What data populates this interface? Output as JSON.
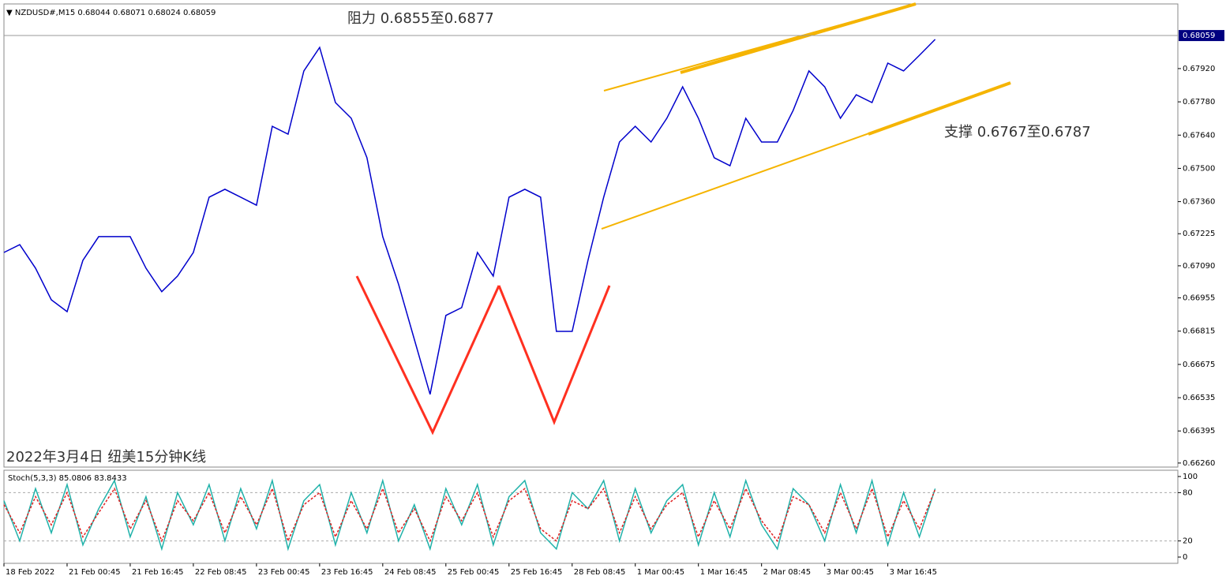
{
  "chart_data": [
    {
      "type": "line",
      "title": "NZDUSD#,M15",
      "ohlc": [
        0.68044,
        0.68071,
        0.68024,
        0.68059
      ],
      "color": "#0000cc",
      "last_price": 0.68059,
      "x": [
        0,
        16,
        32,
        48,
        64,
        80,
        96,
        112,
        128,
        144,
        160,
        176,
        192,
        208,
        224,
        240,
        256,
        272,
        288,
        304,
        320,
        336,
        352,
        368,
        384,
        400,
        416,
        432,
        448,
        464,
        480,
        496,
        512,
        528,
        544,
        560,
        576,
        592,
        608,
        624,
        640,
        656,
        672,
        688,
        704,
        720,
        736,
        752,
        768,
        784,
        800,
        816,
        832,
        848,
        864,
        880,
        896,
        912,
        928,
        944
      ],
      "values": [
        0.67146,
        0.67179,
        0.6708,
        0.66947,
        0.66897,
        0.67113,
        0.67213,
        0.67213,
        0.67213,
        0.6708,
        0.66981,
        0.67047,
        0.67146,
        0.67379,
        0.67412,
        0.67379,
        0.67345,
        0.67677,
        0.67644,
        0.6791,
        0.68009,
        0.67777,
        0.67711,
        0.67545,
        0.67213,
        0.67013,
        0.66781,
        0.66549,
        0.66881,
        0.66914,
        0.67146,
        0.67047,
        0.67379,
        0.67412,
        0.67379,
        0.66814,
        0.66814,
        0.67113,
        0.67379,
        0.67611,
        0.67677,
        0.67611,
        0.67711,
        0.67843,
        0.67711,
        0.67545,
        0.67511,
        0.67711,
        0.67611,
        0.67611,
        0.67744,
        0.6791,
        0.67843,
        0.67711,
        0.6781,
        0.67777,
        0.67943,
        0.6791,
        0.67976,
        0.68043
      ],
      "xlim": [
        0,
        1190
      ],
      "ylim": [
        0.66243,
        0.68192
      ],
      "yticks": [
        {
          "value": 0.6792,
          "label": "0.67920"
        },
        {
          "value": 0.6778,
          "label": "0.67780"
        },
        {
          "value": 0.6764,
          "label": "0.67640"
        },
        {
          "value": 0.675,
          "label": "0.67500"
        },
        {
          "value": 0.6736,
          "label": "0.67360"
        },
        0.67225,
        {
          "value": 0.6709,
          "label": "0.67090"
        },
        0.66955,
        0.66815,
        0.66675,
        0.66535,
        0.66395,
        {
          "value": 0.6626,
          "label": "0.66260"
        }
      ],
      "annotations": [
        "阻力 0.6855至0.6877",
        "支撑 0.6767至0.6787",
        "2022年3月4日 纽美15分钟K线"
      ]
    },
    {
      "type": "line",
      "title": "Stoch(5,3,3)",
      "readings": [
        85.0806,
        83.8433
      ],
      "x": [
        0,
        16,
        32,
        48,
        64,
        80,
        96,
        112,
        128,
        144,
        160,
        176,
        192,
        208,
        224,
        240,
        256,
        272,
        288,
        304,
        320,
        336,
        352,
        368,
        384,
        400,
        416,
        432,
        448,
        464,
        480,
        496,
        512,
        528,
        544,
        560,
        576,
        592,
        608,
        624,
        640,
        656,
        672,
        688,
        704,
        720,
        736,
        752,
        768,
        784,
        800,
        816,
        832,
        848,
        864,
        880,
        896,
        912,
        928,
        944
      ],
      "series": [
        {
          "color": "#20b2aa",
          "values": [
            70,
            20,
            85,
            30,
            90,
            15,
            60,
            95,
            25,
            75,
            10,
            80,
            40,
            90,
            20,
            85,
            35,
            95,
            10,
            70,
            90,
            15,
            80,
            30,
            95,
            20,
            65,
            10,
            85,
            40,
            90,
            15,
            75,
            95,
            30,
            10,
            80,
            60,
            95,
            20,
            85,
            30,
            70,
            90,
            15,
            80,
            25,
            95,
            40,
            10,
            85,
            65,
            20,
            90,
            30,
            95,
            15,
            80,
            25,
            85
          ]
        },
        {
          "color": "#e02020",
          "values": [
            65,
            30,
            75,
            40,
            80,
            25,
            55,
            85,
            35,
            70,
            20,
            70,
            45,
            80,
            30,
            75,
            40,
            85,
            20,
            65,
            80,
            25,
            70,
            35,
            85,
            30,
            60,
            20,
            75,
            45,
            80,
            25,
            70,
            85,
            35,
            20,
            70,
            60,
            85,
            30,
            75,
            35,
            65,
            80,
            25,
            70,
            35,
            85,
            45,
            20,
            75,
            65,
            30,
            80,
            35,
            85,
            25,
            70,
            35,
            84
          ]
        }
      ],
      "xlim": [
        0,
        1190
      ],
      "ylim": [
        -7.8,
        107.8
      ],
      "yticks": [
        0,
        20,
        80,
        100
      ],
      "xticks": [
        {
          "value": 0,
          "label": "18 Feb 2022"
        },
        {
          "value": 64,
          "label": "21 Feb 00:45"
        },
        {
          "value": 128,
          "label": "21 Feb 16:45"
        },
        {
          "value": 192,
          "label": "22 Feb 08:45"
        },
        {
          "value": 256,
          "label": "23 Feb 00:45"
        },
        {
          "value": 320,
          "label": "23 Feb 16:45"
        },
        {
          "value": 384,
          "label": "24 Feb 08:45"
        },
        {
          "value": 448,
          "label": "25 Feb 00:45"
        },
        {
          "value": 512,
          "label": "25 Feb 16:45"
        },
        {
          "value": 576,
          "label": "28 Feb 08:45"
        },
        {
          "value": 640,
          "label": "1 Mar 00:45"
        },
        {
          "value": 704,
          "label": "1 Mar 16:45"
        },
        {
          "value": 768,
          "label": "2 Mar 08:45"
        },
        {
          "value": 832,
          "label": "3 Mar 00:45"
        },
        {
          "value": 896,
          "label": "3 Mar 16:45"
        }
      ]
    }
  ]
}
